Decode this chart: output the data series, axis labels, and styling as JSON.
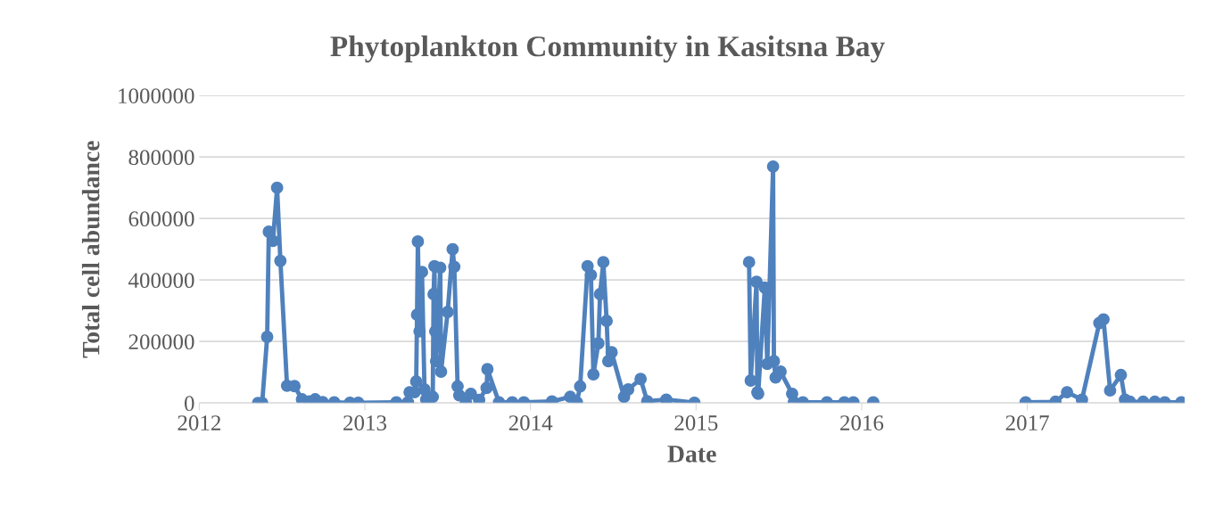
{
  "chart_data": {
    "type": "line",
    "title": "Phytoplankton Community in Kasitsna Bay",
    "xlabel": "Date",
    "ylabel": "Total cell abundance",
    "x": [
      2012.355,
      2012.38,
      2012.41,
      2012.42,
      2012.445,
      2012.47,
      2012.49,
      2012.53,
      2012.575,
      2012.62,
      2012.665,
      2012.7,
      2012.745,
      2012.815,
      2012.91,
      2012.96,
      2013.19,
      2013.26,
      2013.27,
      2013.3,
      2013.31,
      2013.315,
      2013.32,
      2013.33,
      2013.345,
      2013.36,
      2013.37,
      2013.41,
      2013.415,
      2013.42,
      2013.425,
      2013.43,
      2013.455,
      2013.46,
      2013.5,
      2013.53,
      2013.54,
      2013.56,
      2013.57,
      2013.61,
      2013.64,
      2013.69,
      2013.735,
      2013.74,
      2013.81,
      2013.89,
      2013.96,
      2014.13,
      2014.24,
      2014.28,
      2014.3,
      2014.345,
      2014.365,
      2014.38,
      2014.41,
      2014.42,
      2014.44,
      2014.46,
      2014.47,
      2014.49,
      2014.565,
      2014.59,
      2014.665,
      2014.705,
      2014.82,
      2014.99,
      2015.2,
      2015.32,
      2015.33,
      2015.365,
      2015.37,
      2015.375,
      2015.415,
      2015.43,
      2015.465,
      2015.47,
      2015.48,
      2015.51,
      2015.58,
      2015.59,
      2015.645,
      2015.79,
      2015.895,
      2015.95,
      2016.0,
      2016.07,
      2016.5,
      2016.99,
      2017.17,
      2017.24,
      2017.33,
      2017.435,
      2017.46,
      2017.5,
      2017.565,
      2017.59,
      2017.62,
      2017.7,
      2017.77,
      2017.83,
      2017.93
    ],
    "series": [
      {
        "color": "#4f81bd",
        "values": [
          0,
          0,
          215000,
          557000,
          527000,
          700000,
          462000,
          56000,
          55000,
          12000,
          5000,
          12000,
          3000,
          2000,
          1000,
          1000,
          2000,
          2000,
          35000,
          35000,
          70000,
          287000,
          525000,
          233000,
          426000,
          44000,
          12000,
          20000,
          354000,
          445000,
          233000,
          136000,
          440000,
          102000,
          296000,
          500000,
          443000,
          54000,
          25000,
          3000,
          30000,
          10000,
          49000,
          110000,
          2000,
          2000,
          2000,
          5000,
          20000,
          2000,
          54000,
          445000,
          416000,
          93000,
          194000,
          354000,
          458000,
          267000,
          136000,
          165000,
          20000,
          44000,
          78000,
          6000,
          11000,
          1000,
          null,
          458000,
          73000,
          394000,
          35000,
          30000,
          375000,
          127000,
          769000,
          136000,
          83000,
          102000,
          30000,
          3000,
          2000,
          2000,
          2000,
          2000,
          null,
          2000,
          null,
          2000,
          4000,
          35000,
          11000,
          260000,
          272000,
          41000,
          91000,
          11000,
          4000,
          4000,
          4000,
          2000,
          2000
        ]
      }
    ],
    "xlim": [
      2012,
      2017.95
    ],
    "xticks": [
      2012,
      2013,
      2014,
      2015,
      2016,
      2017
    ],
    "ylim": [
      0,
      1000000
    ],
    "yticks": [
      0,
      200000,
      400000,
      600000,
      800000,
      1000000
    ],
    "grid": "y",
    "marker": "circle",
    "line_style": "solid"
  }
}
